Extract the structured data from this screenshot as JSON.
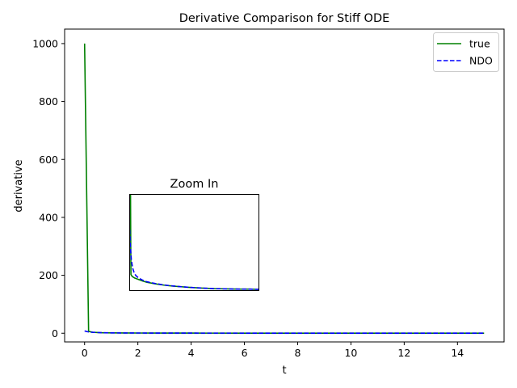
{
  "chart_data": {
    "type": "line",
    "title": "Derivative Comparison for Stiff ODE",
    "xlabel": "t",
    "ylabel": "derivative",
    "xlim": [
      -0.75,
      15.75
    ],
    "ylim": [
      -30,
      1050
    ],
    "xticks": [
      0,
      2,
      4,
      6,
      8,
      10,
      12,
      14
    ],
    "yticks": [
      0,
      200,
      400,
      600,
      800,
      1000
    ],
    "grid": false,
    "legend_position": "top-right",
    "series": [
      {
        "name": "true",
        "color": "#008000",
        "style": "solid",
        "x": [
          0,
          0.15,
          0.3,
          0.6,
          1,
          1.5,
          2,
          3,
          4,
          5,
          6,
          7,
          8,
          9,
          10,
          11,
          12,
          13,
          14,
          15
        ],
        "y": [
          1000,
          6.5,
          3.3,
          1.8,
          1.2,
          0.9,
          0.7,
          0.5,
          0.4,
          0.35,
          0.3,
          0.27,
          0.25,
          0.22,
          0.2,
          0.19,
          0.18,
          0.17,
          0.16,
          0.15
        ]
      },
      {
        "name": "NDO",
        "color": "#0000ff",
        "style": "dashed",
        "x": [
          0,
          0.05,
          0.15,
          0.3,
          0.6,
          1,
          1.5,
          2,
          3,
          4,
          5,
          6,
          7,
          8,
          9,
          10,
          11,
          12,
          13,
          14,
          15
        ],
        "y": [
          8,
          6.5,
          4.5,
          3.2,
          1.9,
          1.2,
          0.9,
          0.7,
          0.5,
          0.4,
          0.35,
          0.3,
          0.27,
          0.25,
          0.22,
          0.2,
          0.19,
          0.18,
          0.17,
          0.16,
          0.15
        ]
      }
    ],
    "inset": {
      "title": "Zoom In",
      "xlim": [
        0,
        15
      ],
      "ylim": [
        0,
        6
      ],
      "series": [
        {
          "name": "true",
          "color": "#008000",
          "style": "solid",
          "x": [
            0.1,
            0.13,
            0.15,
            0.3,
            0.6,
            1,
            1.5,
            2,
            3,
            4,
            5,
            6,
            7,
            8,
            9,
            10,
            11,
            12,
            13,
            14,
            15
          ],
          "y": [
            6,
            2.5,
            1.0,
            0.88,
            0.78,
            0.7,
            0.6,
            0.52,
            0.42,
            0.34,
            0.28,
            0.24,
            0.2,
            0.17,
            0.14,
            0.12,
            0.11,
            0.1,
            0.09,
            0.09,
            0.08
          ]
        },
        {
          "name": "NDO",
          "color": "#0000ff",
          "style": "dashed",
          "x": [
            0,
            0.05,
            0.1,
            0.2,
            0.35,
            0.5,
            0.7,
            1,
            1.5,
            2,
            3,
            4,
            5,
            6,
            7,
            8,
            9,
            10,
            11,
            12,
            13,
            14,
            15
          ],
          "y": [
            3.8,
            3.2,
            2.6,
            1.9,
            1.4,
            1.15,
            0.95,
            0.8,
            0.65,
            0.55,
            0.44,
            0.35,
            0.29,
            0.24,
            0.2,
            0.17,
            0.14,
            0.12,
            0.11,
            0.1,
            0.09,
            0.09,
            0.08
          ]
        }
      ]
    }
  }
}
